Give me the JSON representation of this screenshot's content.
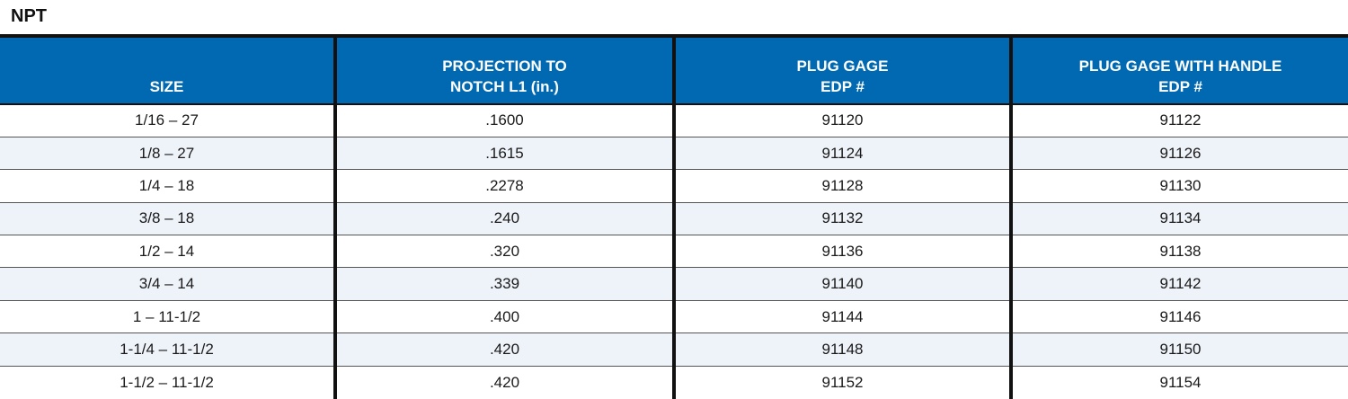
{
  "title": "NPT",
  "headers": [
    {
      "line1": "",
      "line2": "SIZE"
    },
    {
      "line1": "PROJECTION TO",
      "line2": "NOTCH L1 (in.)"
    },
    {
      "line1": "PLUG GAGE",
      "line2": "EDP #"
    },
    {
      "line1": "PLUG GAGE WITH HANDLE",
      "line2": "EDP #"
    }
  ],
  "rows": [
    [
      "1/16 – 27",
      ".1600",
      "91120",
      "91122"
    ],
    [
      "1/8 – 27",
      ".1615",
      "91124",
      "91126"
    ],
    [
      "1/4 – 18",
      ".2278",
      "91128",
      "91130"
    ],
    [
      "3/8 – 18",
      ".240",
      "91132",
      "91134"
    ],
    [
      "1/2 – 14",
      ".320",
      "91136",
      "91138"
    ],
    [
      "3/4 – 14",
      ".339",
      "91140",
      "91142"
    ],
    [
      "1 – 11-1/2",
      ".400",
      "91144",
      "91146"
    ],
    [
      "1-1/4 – 11-1/2",
      ".420",
      "91148",
      "91150"
    ],
    [
      "1-1/2 – 11-1/2",
      ".420",
      "91152",
      "91154"
    ]
  ],
  "colors": {
    "header_bg": "#0069b1",
    "header_text": "#ffffff",
    "alt_row_bg": "#eef2f9",
    "rule": "#111111"
  }
}
